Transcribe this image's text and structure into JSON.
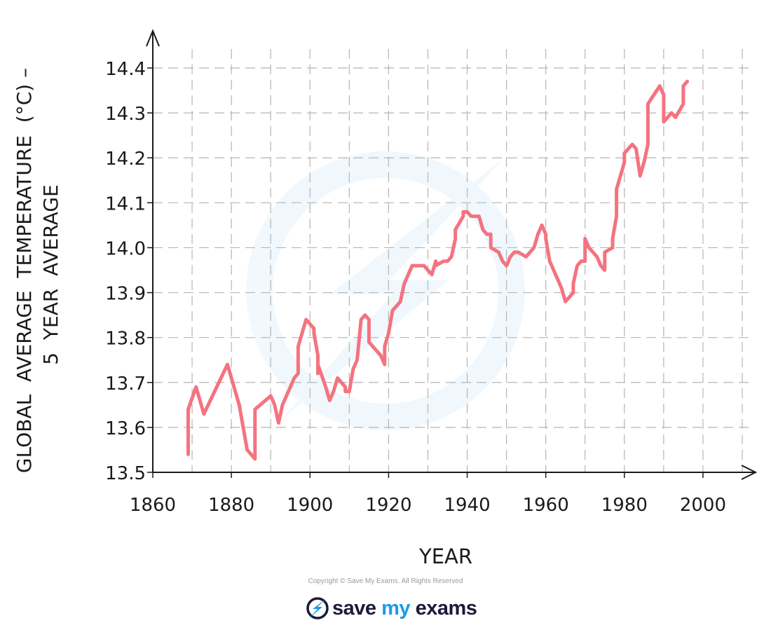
{
  "chart_data": {
    "type": "line",
    "title": "",
    "xlabel": "YEAR",
    "ylabel_line1": "GLOBAL  AVERAGE  TEMPERATURE  (°C) –",
    "ylabel_line2": "5  YEAR  AVERAGE",
    "xlim": [
      1860,
      2010
    ],
    "ylim": [
      13.5,
      14.4
    ],
    "x_ticks": [
      1860,
      1880,
      1900,
      1920,
      1940,
      1960,
      1980,
      2000
    ],
    "x_tick_labels": [
      "1860",
      "1880",
      "1900",
      "1920",
      "1940",
      "1960",
      "1980",
      "2000"
    ],
    "y_ticks": [
      13.5,
      13.6,
      13.7,
      13.8,
      13.9,
      14.0,
      14.1,
      14.2,
      14.3,
      14.4
    ],
    "y_tick_labels": [
      "13.5",
      "13.6",
      "13.7",
      "13.8",
      "13.9",
      "14.0",
      "14.1",
      "14.2",
      "14.3",
      "14.4"
    ],
    "grid": true,
    "line_color": "#f4737f",
    "series": [
      {
        "x": [
          1869,
          1869,
          1871,
          1873,
          1879,
          1882,
          1883,
          1884,
          1886,
          1886,
          1890,
          1891,
          1892,
          1893,
          1895,
          1896,
          1897,
          1897,
          1899,
          1901,
          1901,
          1902,
          1902,
          1902,
          1902,
          1904,
          1905,
          1906,
          1907,
          1908,
          1909,
          1909,
          1910,
          1911,
          1912,
          1913,
          1914,
          1915,
          1915,
          1918,
          1919,
          1919,
          1920,
          1921,
          1922,
          1923,
          1924,
          1926,
          1929,
          1931,
          1932,
          1932,
          1934,
          1935,
          1936,
          1937,
          1937,
          1939,
          1939,
          1940,
          1941,
          1943,
          1944,
          1945,
          1946,
          1946,
          1948,
          1949,
          1950,
          1951,
          1952,
          1953,
          1955,
          1957,
          1958,
          1959,
          1960,
          1960,
          1961,
          1962,
          1963,
          1964,
          1965,
          1966,
          1967,
          1967,
          1968,
          1969,
          1970,
          1970,
          1971,
          1973,
          1974,
          1975,
          1975,
          1977,
          1977,
          1977,
          1978,
          1978,
          1978,
          1979,
          1980,
          1980,
          1982,
          1983,
          1984,
          1985,
          1986,
          1986,
          1989,
          1990,
          1990,
          1992,
          1993,
          1995,
          1995,
          1996
        ],
        "y": [
          13.54,
          13.64,
          13.69,
          13.63,
          13.74,
          13.65,
          13.6,
          13.55,
          13.53,
          13.64,
          13.67,
          13.65,
          13.61,
          13.65,
          13.69,
          13.71,
          13.72,
          13.78,
          13.84,
          13.82,
          13.81,
          13.76,
          13.75,
          13.72,
          13.74,
          13.69,
          13.66,
          13.68,
          13.71,
          13.7,
          13.69,
          13.68,
          13.68,
          13.73,
          13.75,
          13.84,
          13.85,
          13.84,
          13.79,
          13.76,
          13.74,
          13.78,
          13.81,
          13.86,
          13.87,
          13.88,
          13.92,
          13.96,
          13.96,
          13.94,
          13.97,
          13.96,
          13.97,
          13.97,
          13.98,
          14.02,
          14.04,
          14.07,
          14.08,
          14.08,
          14.07,
          14.07,
          14.04,
          14.03,
          14.03,
          14.0,
          13.99,
          13.97,
          13.96,
          13.98,
          13.99,
          13.99,
          13.98,
          14.0,
          14.03,
          14.05,
          14.03,
          14.02,
          13.97,
          13.95,
          13.93,
          13.91,
          13.88,
          13.89,
          13.9,
          13.92,
          13.96,
          13.97,
          13.97,
          14.02,
          14.0,
          13.98,
          13.96,
          13.95,
          13.99,
          14.0,
          14.01,
          14.02,
          14.07,
          14.1,
          14.13,
          14.16,
          14.19,
          14.21,
          14.23,
          14.22,
          14.16,
          14.19,
          14.23,
          14.32,
          14.36,
          14.34,
          14.28,
          14.3,
          14.29,
          14.32,
          14.36,
          14.37
        ]
      }
    ]
  },
  "footer": {
    "copyright": "Copyright © Save My Exams. All Rights Reserved",
    "logo_save": "save",
    "logo_my": "my",
    "logo_exams": "exams",
    "logo_icon": "lightning-bolt-icon",
    "brand_dark": "#1a1a3a",
    "brand_blue": "#1a9be6"
  }
}
